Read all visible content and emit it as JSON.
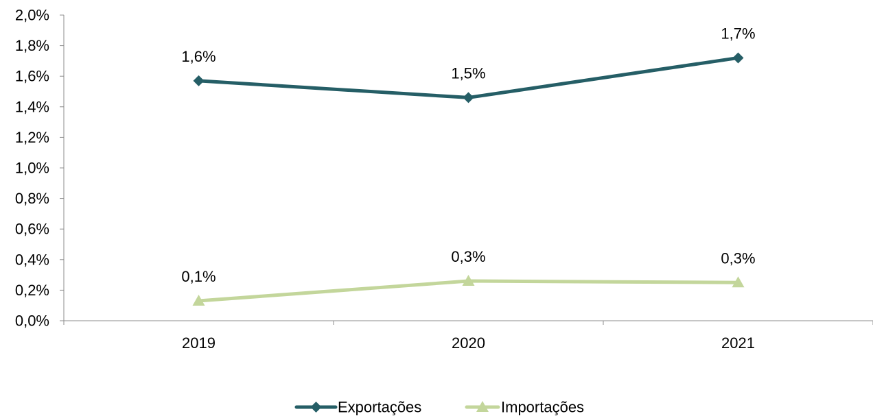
{
  "chart_data": {
    "type": "line",
    "categories": [
      "2019",
      "2020",
      "2021"
    ],
    "series": [
      {
        "name": "Exportações",
        "values": [
          1.57,
          1.46,
          1.72
        ],
        "labels": [
          "1,6%",
          "1,5%",
          "1,7%"
        ],
        "color": "#255E66",
        "marker": "diamond"
      },
      {
        "name": "Importações",
        "values": [
          0.13,
          0.26,
          0.25
        ],
        "labels": [
          "0,1%",
          "0,3%",
          "0,3%"
        ],
        "color": "#C3D69B",
        "marker": "triangle"
      }
    ],
    "ylim": [
      0,
      2.0
    ],
    "yticks": [
      {
        "value": 0.0,
        "label": "0,0%"
      },
      {
        "value": 0.2,
        "label": "0,2%"
      },
      {
        "value": 0.4,
        "label": "0,4%"
      },
      {
        "value": 0.6,
        "label": "0,6%"
      },
      {
        "value": 0.8,
        "label": "0,8%"
      },
      {
        "value": 1.0,
        "label": "1,0%"
      },
      {
        "value": 1.2,
        "label": "1,2%"
      },
      {
        "value": 1.4,
        "label": "1,4%"
      },
      {
        "value": 1.6,
        "label": "1,6%"
      },
      {
        "value": 1.8,
        "label": "1,8%"
      },
      {
        "value": 2.0,
        "label": "2,0%"
      }
    ],
    "grid": false,
    "legend_position": "bottom"
  }
}
